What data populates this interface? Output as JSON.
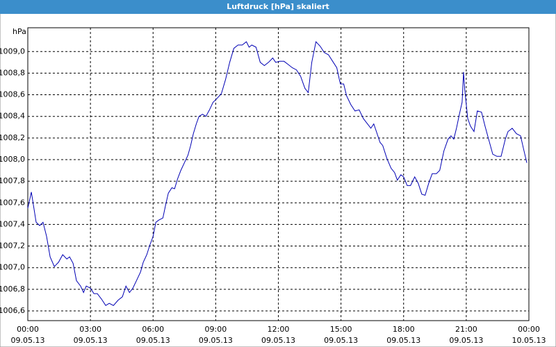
{
  "chart_data": {
    "type": "line",
    "title": "Luftdruck [hPa] skaliert",
    "y_unit": "hPa",
    "x": [
      0,
      0.17,
      0.4,
      0.57,
      0.73,
      0.9,
      1.07,
      1.27,
      1.47,
      1.67,
      1.87,
      2.0,
      2.17,
      2.33,
      2.53,
      2.67,
      2.8,
      3.0,
      3.17,
      3.33,
      3.53,
      3.73,
      3.9,
      4.1,
      4.33,
      4.53,
      4.7,
      4.87,
      5.03,
      5.23,
      5.4,
      5.53,
      5.7,
      5.83,
      6.0,
      6.13,
      6.27,
      6.47,
      6.6,
      6.73,
      6.9,
      7.03,
      7.17,
      7.33,
      7.5,
      7.67,
      7.8,
      7.93,
      8.07,
      8.2,
      8.37,
      8.53,
      8.7,
      8.87,
      9.03,
      9.27,
      9.47,
      9.67,
      9.87,
      10.07,
      10.27,
      10.47,
      10.6,
      10.73,
      10.93,
      11.13,
      11.33,
      11.53,
      11.73,
      11.87,
      12.07,
      12.27,
      12.47,
      12.67,
      12.87,
      13.07,
      13.27,
      13.43,
      13.6,
      13.8,
      14.0,
      14.2,
      14.4,
      14.6,
      14.8,
      14.97,
      15.13,
      15.27,
      15.47,
      15.67,
      15.87,
      16.07,
      16.27,
      16.43,
      16.57,
      16.73,
      16.87,
      17.0,
      17.2,
      17.4,
      17.57,
      17.7,
      17.87,
      18.0,
      18.17,
      18.33,
      18.53,
      18.7,
      18.87,
      19.03,
      19.2,
      19.37,
      19.57,
      19.73,
      19.93,
      20.13,
      20.27,
      20.4,
      20.53,
      20.67,
      20.8,
      20.87,
      20.93,
      21.07,
      21.2,
      21.37,
      21.53,
      21.73,
      21.9,
      22.07,
      22.27,
      22.47,
      22.67,
      22.87,
      23.0,
      23.2,
      23.4,
      23.6,
      23.73,
      23.9
    ],
    "series": [
      {
        "name": "Luftdruck",
        "color": "#0000b4",
        "values": [
          1007.55,
          1007.7,
          1007.42,
          1007.39,
          1007.42,
          1007.29,
          1007.1,
          1007.01,
          1007.05,
          1007.12,
          1007.08,
          1007.1,
          1007.04,
          1006.88,
          1006.83,
          1006.77,
          1006.83,
          1006.81,
          1006.76,
          1006.76,
          1006.71,
          1006.65,
          1006.67,
          1006.65,
          1006.7,
          1006.73,
          1006.83,
          1006.77,
          1006.81,
          1006.89,
          1006.96,
          1007.05,
          1007.12,
          1007.2,
          1007.29,
          1007.42,
          1007.44,
          1007.46,
          1007.58,
          1007.69,
          1007.74,
          1007.73,
          1007.82,
          1007.9,
          1007.97,
          1008.04,
          1008.13,
          1008.24,
          1008.33,
          1008.4,
          1008.42,
          1008.4,
          1008.46,
          1008.53,
          1008.56,
          1008.61,
          1008.74,
          1008.9,
          1009.03,
          1009.06,
          1009.06,
          1009.09,
          1009.04,
          1009.06,
          1009.04,
          1008.9,
          1008.87,
          1008.9,
          1008.94,
          1008.9,
          1008.91,
          1008.91,
          1008.88,
          1008.85,
          1008.83,
          1008.77,
          1008.66,
          1008.62,
          1008.9,
          1009.09,
          1009.05,
          1008.99,
          1008.97,
          1008.91,
          1008.85,
          1008.7,
          1008.7,
          1008.59,
          1008.51,
          1008.45,
          1008.46,
          1008.38,
          1008.33,
          1008.29,
          1008.33,
          1008.24,
          1008.16,
          1008.13,
          1008.01,
          1007.92,
          1007.88,
          1007.81,
          1007.86,
          1007.84,
          1007.76,
          1007.76,
          1007.84,
          1007.78,
          1007.68,
          1007.67,
          1007.78,
          1007.87,
          1007.87,
          1007.9,
          1008.08,
          1008.19,
          1008.22,
          1008.19,
          1008.29,
          1008.42,
          1008.53,
          1008.81,
          1008.64,
          1008.38,
          1008.31,
          1008.26,
          1008.45,
          1008.44,
          1008.31,
          1008.19,
          1008.05,
          1008.03,
          1008.03,
          1008.19,
          1008.26,
          1008.29,
          1008.24,
          1008.22,
          1008.11,
          1007.97
        ]
      }
    ],
    "xlim": [
      0,
      24
    ],
    "ylim": [
      1006.51,
      1009.22
    ],
    "xticks": [
      {
        "value": 0,
        "label": "00:00",
        "date": "09.05.13"
      },
      {
        "value": 3,
        "label": "03:00",
        "date": "09.05.13"
      },
      {
        "value": 6,
        "label": "06:00",
        "date": "09.05.13"
      },
      {
        "value": 9,
        "label": "09:00",
        "date": "09.05.13"
      },
      {
        "value": 12,
        "label": "12:00",
        "date": "09.05.13"
      },
      {
        "value": 15,
        "label": "15:00",
        "date": "09.05.13"
      },
      {
        "value": 18,
        "label": "18:00",
        "date": "09.05.13"
      },
      {
        "value": 21,
        "label": "21:00",
        "date": "09.05.13"
      },
      {
        "value": 24,
        "label": "00:00",
        "date": "10.05.13"
      }
    ],
    "yticks": [
      {
        "value": 1006.6,
        "label": "1006,6"
      },
      {
        "value": 1006.8,
        "label": "1006,8"
      },
      {
        "value": 1007.0,
        "label": "1007,0"
      },
      {
        "value": 1007.2,
        "label": "1007,2"
      },
      {
        "value": 1007.4,
        "label": "1007,4"
      },
      {
        "value": 1007.6,
        "label": "1007,6"
      },
      {
        "value": 1007.8,
        "label": "1007,8"
      },
      {
        "value": 1008.0,
        "label": "1008,0"
      },
      {
        "value": 1008.2,
        "label": "1008,2"
      },
      {
        "value": 1008.4,
        "label": "1008,4"
      },
      {
        "value": 1008.6,
        "label": "1008,6"
      },
      {
        "value": 1008.8,
        "label": "1008,8"
      },
      {
        "value": 1009.0,
        "label": "1009,0"
      }
    ],
    "grid": true
  }
}
